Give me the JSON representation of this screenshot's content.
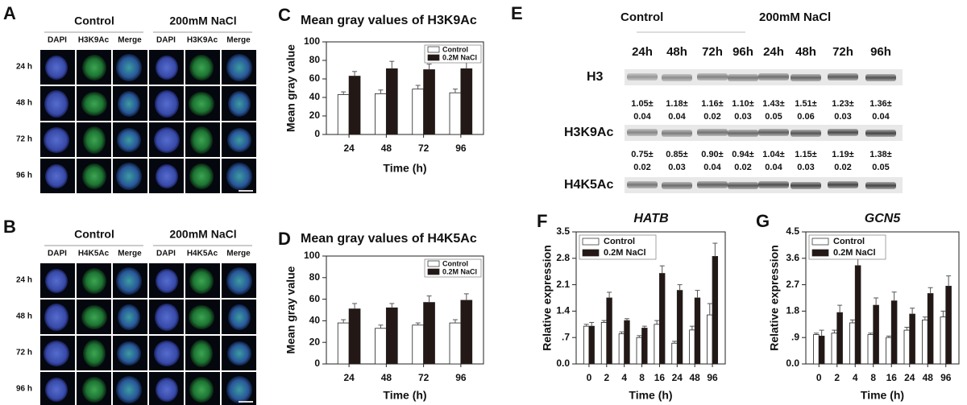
{
  "panels": {
    "A": {
      "label": "A",
      "groups": [
        "Control",
        "200mM NaCl"
      ],
      "columns": [
        "DAPI",
        "H3K9Ac",
        "Merge",
        "DAPI",
        "H3K9Ac",
        "Merge"
      ],
      "rows": [
        "24 h",
        "48 h",
        "72 h",
        "96 h"
      ]
    },
    "B": {
      "label": "B",
      "groups": [
        "Control",
        "200mM NaCl"
      ],
      "columns": [
        "DAPI",
        "H4K5Ac",
        "Merge",
        "DAPI",
        "H4K5Ac",
        "Merge"
      ],
      "rows": [
        "24 h",
        "48 h",
        "72 h",
        "96 h"
      ]
    },
    "E": {
      "label": "E",
      "groups": [
        "Control",
        "200mM NaCl"
      ],
      "times": [
        "24h",
        "48h",
        "72h",
        "96h",
        "24h",
        "48h",
        "72h",
        "96h"
      ],
      "proteins": [
        "H3",
        "H3K9Ac",
        "H4K5Ac"
      ],
      "ratios": [
        [
          [
            "1.05±",
            "0.04"
          ],
          [
            "1.18±",
            "0.04"
          ],
          [
            "1.16±",
            "0.02"
          ],
          [
            "1.10±",
            "0.03"
          ],
          [
            "1.43±",
            "0.05"
          ],
          [
            "1.51±",
            "0.06"
          ],
          [
            "1.23±",
            "0.03"
          ],
          [
            "1.36±",
            "0.04"
          ]
        ],
        [
          [
            "0.75±",
            "0.02"
          ],
          [
            "0.85±",
            "0.03"
          ],
          [
            "0.90±",
            "0.04"
          ],
          [
            "0.94±",
            "0.02"
          ],
          [
            "1.04±",
            "0.04"
          ],
          [
            "1.15±",
            "0.03"
          ],
          [
            "1.19±",
            "0.02"
          ],
          [
            "1.38±",
            "0.05"
          ]
        ]
      ]
    }
  },
  "chart_data": [
    {
      "type": "bar",
      "label": "C",
      "title": "Mean gray values of H3K9Ac",
      "x_label": "Time (h)",
      "y_label": "Mean gray value",
      "categories": [
        "24",
        "48",
        "72",
        "96"
      ],
      "ylim": [
        0,
        100
      ],
      "yticks": [
        0,
        20,
        40,
        60,
        80,
        100
      ],
      "legend": "upper right",
      "series": [
        {
          "name": "Control",
          "color": "#ffffff",
          "values": [
            43,
            44,
            49,
            45
          ],
          "errors": [
            3,
            4,
            4,
            4
          ]
        },
        {
          "name": "0.2M NaCl",
          "color": "#231815",
          "values": [
            63,
            71,
            70,
            71
          ],
          "errors": [
            5,
            8,
            6,
            8
          ]
        }
      ]
    },
    {
      "type": "bar",
      "label": "D",
      "title": "Mean gray values of H4K5Ac",
      "x_label": "Time (h)",
      "y_label": "Mean gray value",
      "categories": [
        "24",
        "48",
        "72",
        "96"
      ],
      "ylim": [
        0,
        100
      ],
      "yticks": [
        0,
        20,
        40,
        60,
        80,
        100
      ],
      "legend": "upper right",
      "series": [
        {
          "name": "Control",
          "color": "#ffffff",
          "values": [
            38,
            33,
            36,
            38
          ],
          "errors": [
            3,
            3,
            2,
            3
          ]
        },
        {
          "name": "0.2M NaCl",
          "color": "#231815",
          "values": [
            51,
            52,
            57,
            59
          ],
          "errors": [
            5,
            4,
            6,
            6
          ]
        }
      ]
    },
    {
      "type": "bar",
      "label": "F",
      "title": "HATB",
      "x_label": "Time (h)",
      "y_label": "Relative expression",
      "categories": [
        "0",
        "2",
        "4",
        "8",
        "16",
        "24",
        "48",
        "96"
      ],
      "ylim": [
        0,
        3.5
      ],
      "yticks": [
        {
          "value": 0,
          "label": "0.0"
        },
        {
          "value": 0.7,
          "label": ".7"
        },
        1.4,
        2.1,
        2.8,
        3.5
      ],
      "legend": "upper left",
      "series": [
        {
          "name": "Control",
          "color": "#ffffff",
          "values": [
            1.0,
            1.1,
            0.8,
            0.7,
            1.05,
            0.55,
            0.9,
            1.3
          ],
          "errors": [
            0.05,
            0.05,
            0.05,
            0.05,
            0.1,
            0.05,
            0.1,
            0.3
          ]
        },
        {
          "name": "0.2M NaCl",
          "color": "#231815",
          "values": [
            1.0,
            1.75,
            1.15,
            0.95,
            2.4,
            1.95,
            1.75,
            2.85
          ],
          "errors": [
            0.1,
            0.15,
            0.05,
            0.05,
            0.2,
            0.15,
            0.2,
            0.35
          ]
        }
      ]
    },
    {
      "type": "bar",
      "label": "G",
      "title": "GCN5",
      "x_label": "Time (h)",
      "y_label": "Relative expression",
      "categories": [
        "0",
        "2",
        "4",
        "8",
        "16",
        "24",
        "48",
        "96"
      ],
      "ylim": [
        0,
        4.5
      ],
      "yticks": [
        {
          "value": 0,
          "label": "0.0"
        },
        {
          "value": 0.9,
          "label": ".9"
        },
        1.8,
        2.7,
        3.6,
        4.5
      ],
      "legend": "upper left",
      "series": [
        {
          "name": "Control",
          "color": "#ffffff",
          "values": [
            1.0,
            1.05,
            1.4,
            1.0,
            0.9,
            1.15,
            1.5,
            1.6
          ],
          "errors": [
            0.05,
            0.1,
            0.1,
            0.05,
            0.05,
            0.1,
            0.1,
            0.2
          ]
        },
        {
          "name": "0.2M NaCl",
          "color": "#231815",
          "values": [
            0.95,
            1.75,
            3.35,
            2.0,
            2.15,
            1.7,
            2.4,
            2.65
          ],
          "errors": [
            0.2,
            0.25,
            0.45,
            0.25,
            0.3,
            0.2,
            0.2,
            0.35
          ]
        }
      ]
    }
  ]
}
